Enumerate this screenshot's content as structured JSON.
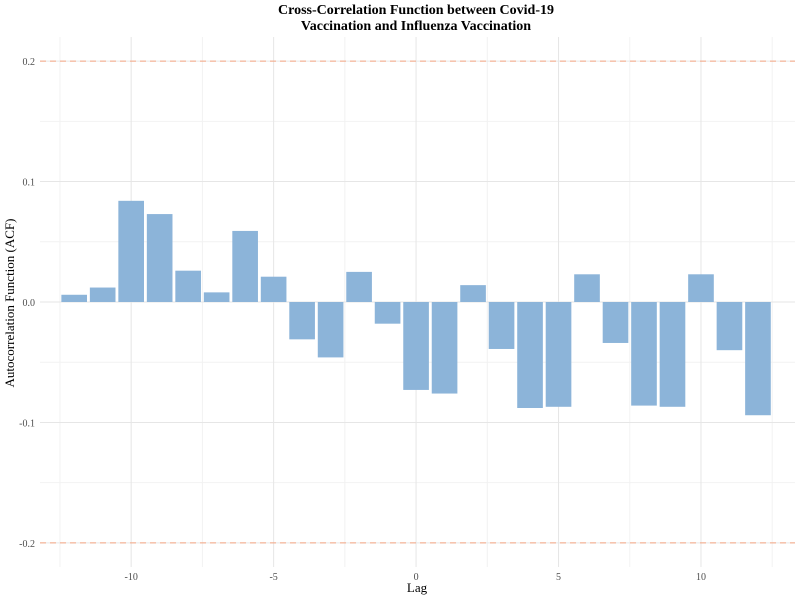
{
  "chart_data": {
    "type": "bar",
    "title_lines": [
      "Cross-Correlation Function between Covid-19",
      "Vaccination and Influenza Vaccination"
    ],
    "xlabel": "Lag",
    "ylabel": "Autocorrelation Function (ACF)",
    "x": [
      -12,
      -11,
      -10,
      -9,
      -8,
      -7,
      -6,
      -5,
      -4,
      -3,
      -2,
      -1,
      0,
      1,
      2,
      3,
      4,
      5,
      6,
      7,
      8,
      9,
      10,
      11,
      12
    ],
    "values": [
      0.006,
      0.012,
      0.084,
      0.073,
      0.026,
      0.008,
      0.059,
      0.021,
      -0.031,
      -0.046,
      0.025,
      -0.018,
      -0.073,
      -0.076,
      0.014,
      -0.039,
      -0.088,
      -0.087,
      0.023,
      -0.034,
      -0.086,
      -0.087,
      0.023,
      -0.04,
      -0.094
    ],
    "xlim": [
      -13.2,
      13.3
    ],
    "ylim": [
      -0.22,
      0.22
    ],
    "xticks": [
      -10,
      -5,
      0,
      5,
      10
    ],
    "xtick_labels": [
      "-10",
      "-5",
      "0",
      "5",
      "10"
    ],
    "yticks": [
      -0.2,
      -0.1,
      0.0,
      0.1,
      0.2
    ],
    "ytick_labels": [
      "-0.2",
      "-0.1",
      "0.0",
      "0.1",
      "0.2"
    ],
    "confidence_bounds": [
      0.2,
      -0.2
    ],
    "bar_color": "#8cb4d9",
    "bound_color": "#f4a582",
    "grid": true
  }
}
